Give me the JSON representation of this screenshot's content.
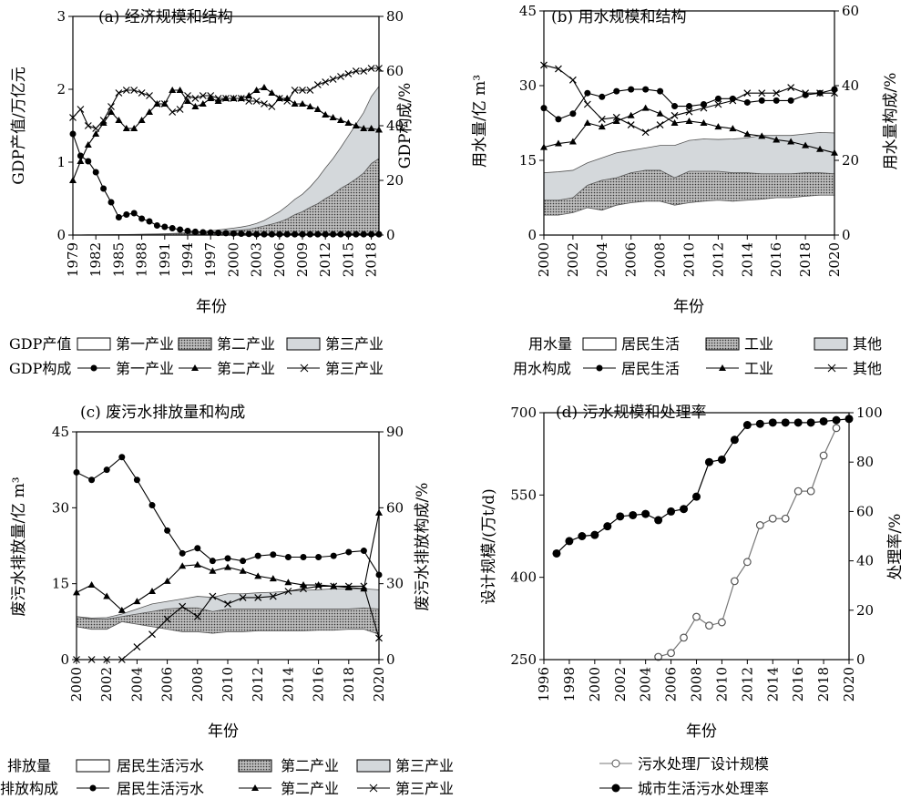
{
  "chart_data": [
    {
      "type": "area",
      "title": "(a) 经济规模和结构",
      "xlabel": "年份",
      "ylabel": "GDP产值/万亿元",
      "y2label": "GDP构成/%",
      "xlim": [
        1979,
        2019
      ],
      "ylim": [
        0,
        3
      ],
      "y2lim": [
        0,
        80
      ],
      "xticks": [
        1979,
        1982,
        1985,
        1988,
        1991,
        1994,
        1997,
        2000,
        2003,
        2006,
        2009,
        2012,
        2015,
        2018
      ],
      "yticks": [
        0,
        1,
        2,
        3
      ],
      "y2ticks": [
        0,
        20,
        40,
        60,
        80
      ],
      "x": [
        1979,
        1980,
        1981,
        1982,
        1983,
        1984,
        1985,
        1986,
        1987,
        1988,
        1989,
        1990,
        1991,
        1992,
        1993,
        1994,
        1995,
        1996,
        1997,
        1998,
        1999,
        2000,
        2001,
        2002,
        2003,
        2004,
        2005,
        2006,
        2007,
        2008,
        2009,
        2010,
        2011,
        2012,
        2013,
        2014,
        2015,
        2016,
        2017,
        2018,
        2019
      ],
      "area_series": [
        {
          "name": "第一产业",
          "values": [
            0.001,
            0.001,
            0.001,
            0.001,
            0.001,
            0.001,
            0.001,
            0.001,
            0.002,
            0.002,
            0.002,
            0.002,
            0.002,
            0.002,
            0.003,
            0.003,
            0.004,
            0.004,
            0.004,
            0.004,
            0.004,
            0.004,
            0.005,
            0.005,
            0.005,
            0.006,
            0.006,
            0.006,
            0.007,
            0.008,
            0.008,
            0.009,
            0.01,
            0.011,
            0.011,
            0.012,
            0.012,
            0.013,
            0.013,
            0.013,
            0.014
          ]
        },
        {
          "name": "第二产业",
          "values": [
            0.002,
            0.002,
            0.003,
            0.003,
            0.003,
            0.004,
            0.005,
            0.006,
            0.007,
            0.009,
            0.01,
            0.012,
            0.014,
            0.017,
            0.021,
            0.026,
            0.032,
            0.038,
            0.043,
            0.048,
            0.052,
            0.06,
            0.068,
            0.08,
            0.1,
            0.125,
            0.15,
            0.18,
            0.22,
            0.28,
            0.32,
            0.38,
            0.43,
            0.5,
            0.56,
            0.64,
            0.7,
            0.77,
            0.85,
            0.98,
            1.05
          ]
        },
        {
          "name": "第三产业",
          "values": [
            0.002,
            0.002,
            0.003,
            0.003,
            0.004,
            0.005,
            0.006,
            0.008,
            0.009,
            0.011,
            0.013,
            0.015,
            0.018,
            0.022,
            0.027,
            0.034,
            0.042,
            0.05,
            0.06,
            0.07,
            0.082,
            0.095,
            0.11,
            0.13,
            0.16,
            0.2,
            0.26,
            0.32,
            0.4,
            0.49,
            0.56,
            0.66,
            0.78,
            0.92,
            1.05,
            1.2,
            1.36,
            1.52,
            1.68,
            1.9,
            2.04
          ]
        }
      ],
      "line_series": [
        {
          "name": "第一产业",
          "marker": "circle",
          "values": [
            37,
            29,
            27,
            23,
            17,
            12,
            6.5,
            7.5,
            8,
            6,
            5,
            3.5,
            3,
            2.5,
            2,
            1.5,
            1.2,
            1,
            0.9,
            0.8,
            0.7,
            0.6,
            0.5,
            0.4,
            0.3,
            0.3,
            0.3,
            0.3,
            0.3,
            0.3,
            0.3,
            0.3,
            0.3,
            0.3,
            0.3,
            0.3,
            0.3,
            0.3,
            0.3,
            0.3,
            0.3
          ]
        },
        {
          "name": "第二产业",
          "marker": "triangle",
          "values": [
            20,
            27,
            33,
            37,
            41,
            45,
            42,
            39,
            39,
            42,
            45,
            48,
            48,
            53,
            53,
            49,
            47,
            48,
            50,
            49,
            50,
            50,
            50,
            51,
            53,
            54,
            52,
            50,
            50,
            48,
            48,
            47,
            46,
            44,
            43,
            42,
            41,
            40,
            39,
            39,
            38.5
          ]
        },
        {
          "name": "第三产业",
          "marker": "x",
          "values": [
            43,
            46,
            40,
            39,
            42,
            47,
            52,
            53,
            53,
            52,
            51,
            48,
            48,
            45,
            46,
            51,
            50,
            51,
            51,
            50,
            50,
            50,
            50,
            49,
            49,
            48,
            47,
            50,
            49,
            53,
            53,
            53,
            55,
            56,
            57,
            58,
            59,
            60,
            60,
            61,
            61
          ]
        }
      ],
      "legend": {
        "rows": [
          {
            "label": "GDP产值",
            "items": [
              "第一产业",
              "第二产业",
              "第三产业"
            ]
          },
          {
            "label": "GDP构成",
            "items": [
              "第一产业",
              "第二产业",
              "第三产业"
            ]
          }
        ]
      }
    },
    {
      "type": "area",
      "title": "(b) 用水规模和结构",
      "xlabel": "年份",
      "ylabel": "用水量/亿 m³",
      "y2label": "用水量构成/%",
      "xlim": [
        2000,
        2020
      ],
      "ylim": [
        0,
        45
      ],
      "y2lim": [
        0,
        60
      ],
      "xticks": [
        2000,
        2002,
        2004,
        2006,
        2008,
        2010,
        2012,
        2014,
        2016,
        2018,
        2020
      ],
      "yticks": [
        0,
        15,
        30,
        45
      ],
      "y2ticks": [
        0,
        20,
        40,
        60
      ],
      "x": [
        2000,
        2001,
        2002,
        2003,
        2004,
        2005,
        2006,
        2007,
        2008,
        2009,
        2010,
        2011,
        2012,
        2013,
        2014,
        2015,
        2016,
        2017,
        2018,
        2019,
        2020
      ],
      "area_series": [
        {
          "name": "居民生活",
          "values": [
            4,
            4,
            4.5,
            5.5,
            5,
            6,
            6.5,
            6.8,
            6.8,
            6,
            6.5,
            6.8,
            7,
            6.8,
            7,
            7.2,
            7.5,
            7.5,
            7.8,
            8,
            8
          ]
        },
        {
          "name": "工业",
          "values": [
            7,
            7,
            7.5,
            10,
            11,
            11.5,
            12.5,
            13,
            13,
            11.5,
            12.8,
            12.8,
            12.8,
            12.5,
            12.5,
            12.3,
            12.3,
            12.3,
            12.5,
            12.5,
            12.3
          ]
        },
        {
          "name": "其他",
          "values": [
            12.5,
            12.7,
            13,
            14.5,
            15.5,
            16.5,
            17,
            17.5,
            18,
            18,
            19,
            19.3,
            19.2,
            19.3,
            19.5,
            20,
            20,
            20,
            20.3,
            20.6,
            20.5
          ]
        }
      ],
      "line_series": [
        {
          "name": "居民生活",
          "marker": "circle",
          "values": [
            34,
            31,
            32.5,
            38,
            37,
            38.5,
            39,
            39,
            38.5,
            34.5,
            34.5,
            35,
            36.5,
            36.5,
            35.5,
            36,
            36,
            36,
            37.5,
            38,
            39
          ]
        },
        {
          "name": "工业",
          "marker": "triangle",
          "values": [
            23.5,
            24.5,
            25,
            30,
            29,
            30.5,
            32,
            34,
            32.5,
            30,
            30.5,
            30,
            29,
            28.5,
            27,
            26.5,
            25.5,
            25,
            24,
            23,
            22
          ]
        },
        {
          "name": "其他",
          "marker": "x",
          "values": [
            45.5,
            44.5,
            41.5,
            35,
            31,
            31.5,
            29.5,
            27.5,
            29.5,
            32,
            33,
            34,
            35,
            36,
            38,
            38,
            38,
            39.5,
            38,
            38,
            38
          ]
        }
      ],
      "legend": {
        "rows": [
          {
            "label": "用水量",
            "items": [
              "居民生活",
              "工业",
              "其他"
            ]
          },
          {
            "label": "用水构成",
            "items": [
              "居民生活",
              "工业",
              "其他"
            ]
          }
        ]
      }
    },
    {
      "type": "area",
      "title": "(c) 废污水排放量和构成",
      "xlabel": "年份",
      "ylabel": "废污水排放量/亿 m³",
      "y2label": "废污水排放构成/%",
      "xlim": [
        2000,
        2020
      ],
      "ylim": [
        0,
        45
      ],
      "y2lim": [
        0,
        90
      ],
      "xticks": [
        2000,
        2002,
        2004,
        2006,
        2008,
        2010,
        2012,
        2014,
        2016,
        2018,
        2020
      ],
      "yticks": [
        0,
        15,
        30,
        45
      ],
      "y2ticks": [
        0,
        30,
        60,
        90
      ],
      "x": [
        2000,
        2001,
        2002,
        2003,
        2004,
        2005,
        2006,
        2007,
        2008,
        2009,
        2010,
        2011,
        2012,
        2013,
        2014,
        2015,
        2016,
        2017,
        2018,
        2019,
        2020
      ],
      "area_series": [
        {
          "name": "居民生活污水",
          "values": [
            6.5,
            6,
            6,
            7.5,
            7,
            6.5,
            6,
            5.5,
            5.5,
            5.2,
            5.5,
            5.5,
            5.7,
            5.7,
            5.7,
            5.7,
            5.8,
            5.8,
            6,
            6,
            5
          ]
        },
        {
          "name": "第二产业",
          "values": [
            8.5,
            8,
            8,
            8.5,
            9,
            9.5,
            10,
            10.2,
            10.2,
            9.5,
            10,
            10,
            10,
            10,
            10,
            10,
            10,
            10,
            10,
            10.2,
            10
          ]
        },
        {
          "name": "第三产业",
          "values": [
            8.5,
            8.2,
            8.3,
            9,
            10,
            11,
            11.5,
            12,
            12.5,
            12.3,
            13,
            13,
            13.2,
            13.3,
            13.5,
            13.7,
            13.8,
            14,
            14,
            14,
            13.8
          ]
        }
      ],
      "line_series": [
        {
          "name": "居民生活污水",
          "marker": "circle",
          "values": [
            74,
            71,
            75,
            80,
            71,
            61,
            51,
            42,
            44,
            39,
            40,
            39,
            41,
            41.5,
            40.5,
            40.5,
            40.5,
            41,
            42.5,
            43,
            33.5
          ]
        },
        {
          "name": "第二产业",
          "marker": "triangle",
          "values": [
            26.5,
            29.5,
            25,
            19.5,
            23,
            27,
            31,
            37,
            37.5,
            35,
            36.5,
            35,
            33,
            32,
            30.5,
            29.5,
            29.5,
            29,
            28.5,
            28,
            58
          ]
        },
        {
          "name": "第三产业",
          "marker": "x",
          "values": [
            0,
            0,
            0,
            0,
            5,
            10,
            16,
            21,
            17,
            25,
            22,
            24.5,
            24.5,
            25,
            27,
            28,
            29,
            29,
            29,
            29,
            8.5
          ]
        }
      ],
      "legend": {
        "rows": [
          {
            "label": "排放量",
            "items": [
              "居民生活污水",
              "第二产业",
              "第三产业"
            ]
          },
          {
            "label": "排放构成",
            "items": [
              "居民生活污水",
              "第二产业",
              "第三产业"
            ]
          }
        ]
      }
    },
    {
      "type": "line",
      "title": "(d) 污水规模和处理率",
      "xlabel": "年份",
      "ylabel": "设计规模/(万t/d)",
      "y2label": "处理率/%",
      "xlim": [
        1996,
        2020
      ],
      "ylim": [
        250,
        700
      ],
      "y2lim": [
        0,
        100
      ],
      "xticks": [
        1996,
        1998,
        2000,
        2002,
        2004,
        2006,
        2008,
        2010,
        2012,
        2014,
        2016,
        2018,
        2020
      ],
      "yticks": [
        250,
        400,
        550,
        700
      ],
      "y2ticks": [
        0,
        20,
        40,
        60,
        80,
        100
      ],
      "series": [
        {
          "name": "污水处理厂设计规模",
          "axis": "left",
          "marker": "open-circle",
          "x": [
            2005,
            2006,
            2007,
            2008,
            2009,
            2010,
            2011,
            2012,
            2013,
            2014,
            2015,
            2016,
            2017,
            2018,
            2019
          ],
          "values": [
            255,
            262,
            290,
            328,
            312,
            318,
            393,
            428,
            495,
            507,
            507,
            557,
            557,
            622,
            672
          ]
        },
        {
          "name": "城市生活污水处理率",
          "axis": "right",
          "marker": "filled-circle",
          "x": [
            1997,
            1998,
            1999,
            2000,
            2001,
            2002,
            2003,
            2004,
            2005,
            2006,
            2007,
            2008,
            2009,
            2010,
            2011,
            2012,
            2013,
            2014,
            2015,
            2016,
            2017,
            2018,
            2019,
            2020
          ],
          "values": [
            43,
            48,
            50,
            50.5,
            54,
            58,
            58.5,
            59,
            56.5,
            60,
            61,
            66,
            80,
            81,
            89,
            95,
            95.5,
            96,
            96,
            96,
            96,
            96.5,
            97,
            97.5
          ]
        }
      ],
      "legend": {
        "items": [
          "污水处理厂设计规模",
          "城市生活污水处理率"
        ]
      }
    }
  ]
}
